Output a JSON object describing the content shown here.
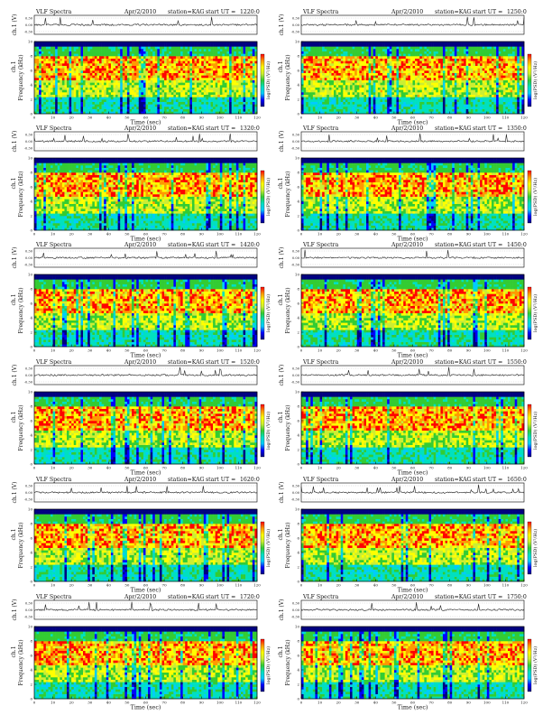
{
  "shared": {
    "title_left": "VLF Spectra",
    "date": "Apr/2/2010",
    "station": "station=KAG",
    "start_prefix": "start UT =",
    "trace_ylabel": "ch.1 (V)",
    "trace_ticks": [
      "0.30",
      "0.00",
      "-0.30"
    ],
    "spec_ylabel_top": "ch.1",
    "spec_ylabel": "Frequency (kHz)",
    "freq_ticks": [
      "0",
      "2",
      "4",
      "6",
      "8",
      "10"
    ],
    "time_ticks": [
      "0",
      "10",
      "20",
      "30",
      "40",
      "50",
      "60",
      "70",
      "80",
      "90",
      "100",
      "110",
      "120"
    ],
    "xlabel": "Time (sec)",
    "colorbar_label": "log(PSD) (V²/Hz)"
  },
  "colors": {
    "spectrogram_scale": [
      "#000080",
      "#0000ff",
      "#00ccff",
      "#00e0c0",
      "#33cc33",
      "#ccee33",
      "#ffff00",
      "#ff9900",
      "#ff0000"
    ]
  },
  "chart_data": [
    {
      "type": "heatmap",
      "start_ut": "1220:0",
      "x_range": [
        0,
        120
      ],
      "y_range": [
        0,
        10
      ]
    },
    {
      "type": "heatmap",
      "start_ut": "1250:0",
      "x_range": [
        0,
        120
      ],
      "y_range": [
        0,
        10
      ]
    },
    {
      "type": "heatmap",
      "start_ut": "1320:0",
      "x_range": [
        0,
        120
      ],
      "y_range": [
        0,
        10
      ]
    },
    {
      "type": "heatmap",
      "start_ut": "1350:0",
      "x_range": [
        0,
        120
      ],
      "y_range": [
        0,
        10
      ]
    },
    {
      "type": "heatmap",
      "start_ut": "1420:0",
      "x_range": [
        0,
        120
      ],
      "y_range": [
        0,
        10
      ]
    },
    {
      "type": "heatmap",
      "start_ut": "1450:0",
      "x_range": [
        0,
        120
      ],
      "y_range": [
        0,
        10
      ]
    },
    {
      "type": "heatmap",
      "start_ut": "1520:0",
      "x_range": [
        0,
        120
      ],
      "y_range": [
        0,
        10
      ]
    },
    {
      "type": "heatmap",
      "start_ut": "1550:0",
      "x_range": [
        0,
        120
      ],
      "y_range": [
        0,
        10
      ]
    },
    {
      "type": "heatmap",
      "start_ut": "1620:0",
      "x_range": [
        0,
        120
      ],
      "y_range": [
        0,
        10
      ]
    },
    {
      "type": "heatmap",
      "start_ut": "1650:0",
      "x_range": [
        0,
        120
      ],
      "y_range": [
        0,
        10
      ]
    },
    {
      "type": "heatmap",
      "start_ut": "1720:0",
      "x_range": [
        0,
        120
      ],
      "y_range": [
        0,
        10
      ]
    },
    {
      "type": "heatmap",
      "start_ut": "1750:0",
      "x_range": [
        0,
        120
      ],
      "y_range": [
        0,
        10
      ]
    }
  ]
}
